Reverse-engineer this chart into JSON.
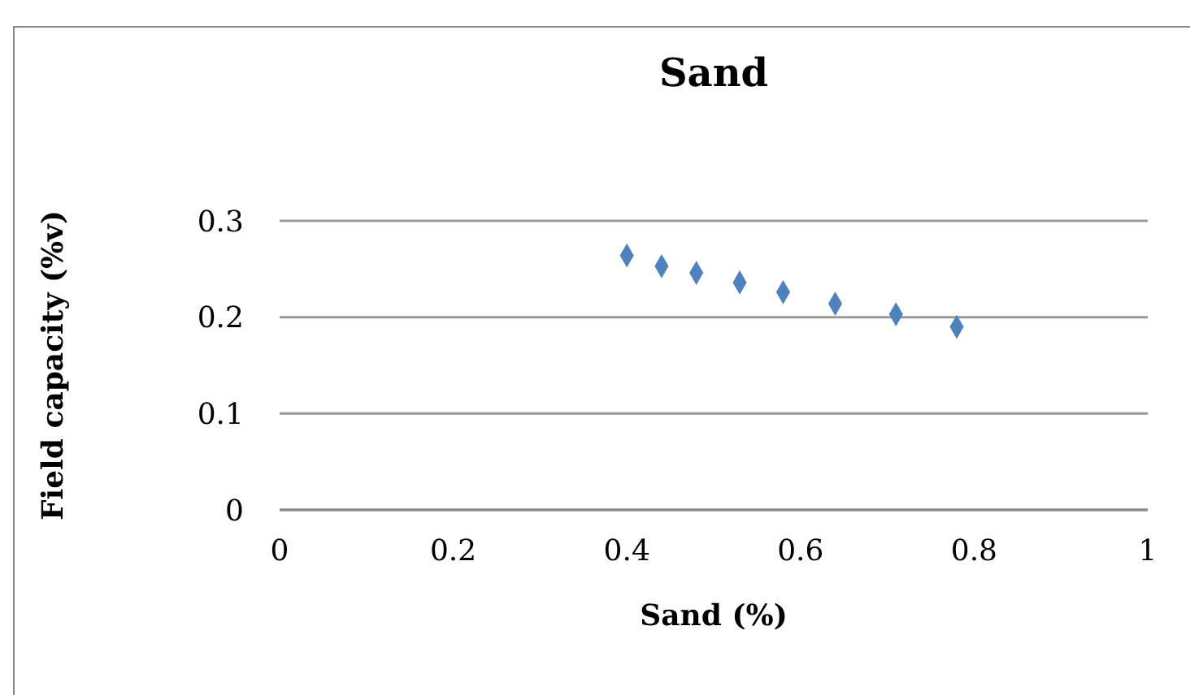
{
  "chart_data": {
    "type": "scatter",
    "title": "Sand",
    "xlabel": "Sand (%)",
    "ylabel": "Field capacity (%v)",
    "x": [
      0.4,
      0.44,
      0.48,
      0.53,
      0.58,
      0.64,
      0.71,
      0.78
    ],
    "series": [
      {
        "color": "#4f81bd",
        "values": [
          0.264,
          0.253,
          0.246,
          0.236,
          0.226,
          0.214,
          0.203,
          0.19
        ]
      }
    ],
    "xlim": [
      0,
      1
    ],
    "xticks": [
      0,
      0.2,
      0.4,
      0.6,
      0.8,
      1
    ],
    "ylim": [
      0,
      0.3
    ],
    "yticks": [
      0,
      0.1,
      0.2,
      0.3
    ],
    "grid": "y",
    "marker": "diamond",
    "legend": false
  }
}
